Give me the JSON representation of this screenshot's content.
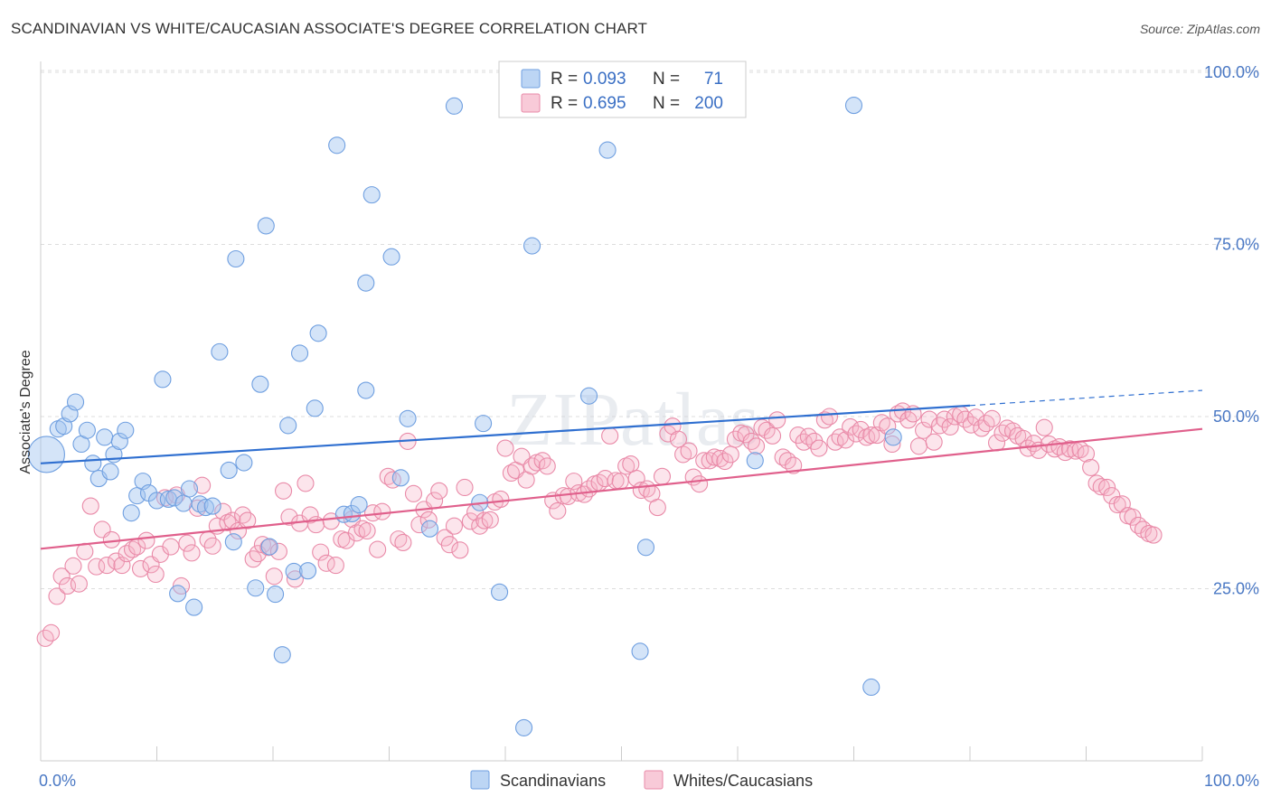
{
  "title": "SCANDINAVIAN VS WHITE/CAUCASIAN ASSOCIATE'S DEGREE CORRELATION CHART",
  "source": "Source: ZipAtlas.com",
  "watermark": "ZIPatlas",
  "colors": {
    "scandinavian": "#6f9fe0",
    "scandinavian_fill": "rgba(160,195,240,0.45)",
    "scandinavian_line": "#2f6fd0",
    "white": "#e98aa8",
    "white_fill": "rgba(245,180,200,0.35)",
    "white_line": "#e0608c",
    "grid": "#dddddd",
    "tick_label": "#4a78c4"
  },
  "legend": {
    "r_label": "R =",
    "n_label": "N =",
    "entries": [
      {
        "r": "0.093",
        "n": "71"
      },
      {
        "r": "0.695",
        "n": "200"
      }
    ]
  },
  "bottom_legend": [
    "Scandinavians",
    "Whites/Caucasians"
  ],
  "chart_data": {
    "type": "scatter",
    "title": "SCANDINAVIAN VS WHITE/CAUCASIAN ASSOCIATE'S DEGREE CORRELATION CHART",
    "xlabel": "",
    "ylabel": "Associate's Degree",
    "xlim": [
      0,
      100
    ],
    "ylim": [
      0,
      100
    ],
    "x_tick_labels": [
      "0.0%",
      "100.0%"
    ],
    "y_ticks": [
      25,
      50,
      75,
      100
    ],
    "y_tick_labels": [
      "25.0%",
      "50.0%",
      "75.0%",
      "100.0%"
    ],
    "grid": true,
    "legend_position": "top-center",
    "series": [
      {
        "name": "Scandinavians",
        "r": 0.093,
        "n": 71,
        "trend": {
          "x0": 0,
          "y0": 43.2,
          "x1": 80,
          "y1": 51.6,
          "dash_to": 100,
          "dash_y": 53.8
        },
        "points": [
          [
            0.5,
            44.5
          ],
          [
            1.5,
            48.2
          ],
          [
            2.0,
            48.6
          ],
          [
            2.5,
            50.4
          ],
          [
            3.0,
            52.1
          ],
          [
            3.5,
            46.0
          ],
          [
            4.0,
            48.0
          ],
          [
            4.5,
            43.2
          ],
          [
            5.0,
            41.0
          ],
          [
            5.5,
            47.0
          ],
          [
            6.0,
            42.0
          ],
          [
            6.3,
            44.5
          ],
          [
            6.8,
            46.4
          ],
          [
            7.3,
            48.0
          ],
          [
            7.8,
            36.0
          ],
          [
            8.3,
            38.5
          ],
          [
            8.8,
            40.6
          ],
          [
            9.3,
            38.9
          ],
          [
            10.0,
            37.8
          ],
          [
            10.5,
            55.4
          ],
          [
            11.0,
            38.0
          ],
          [
            11.5,
            38.2
          ],
          [
            11.8,
            24.3
          ],
          [
            12.3,
            37.4
          ],
          [
            12.8,
            39.5
          ],
          [
            13.2,
            22.3
          ],
          [
            13.7,
            37.3
          ],
          [
            14.2,
            36.8
          ],
          [
            14.8,
            37.0
          ],
          [
            15.4,
            59.4
          ],
          [
            16.2,
            42.2
          ],
          [
            16.6,
            31.8
          ],
          [
            16.8,
            72.9
          ],
          [
            17.5,
            43.3
          ],
          [
            18.5,
            25.1
          ],
          [
            18.9,
            54.7
          ],
          [
            19.4,
            77.7
          ],
          [
            19.7,
            31.1
          ],
          [
            20.2,
            24.2
          ],
          [
            20.8,
            15.4
          ],
          [
            21.3,
            48.7
          ],
          [
            21.8,
            27.5
          ],
          [
            22.3,
            59.2
          ],
          [
            23.0,
            27.6
          ],
          [
            23.6,
            51.2
          ],
          [
            23.9,
            62.1
          ],
          [
            25.5,
            89.4
          ],
          [
            26.1,
            35.8
          ],
          [
            26.8,
            35.9
          ],
          [
            27.4,
            37.2
          ],
          [
            28.0,
            53.8
          ],
          [
            28.0,
            69.4
          ],
          [
            28.5,
            82.2
          ],
          [
            30.2,
            73.2
          ],
          [
            31.0,
            41.1
          ],
          [
            31.6,
            49.7
          ],
          [
            33.5,
            33.7
          ],
          [
            35.6,
            95.1
          ],
          [
            37.8,
            37.5
          ],
          [
            38.1,
            49.0
          ],
          [
            39.5,
            24.5
          ],
          [
            41.6,
            4.8
          ],
          [
            42.3,
            74.8
          ],
          [
            47.2,
            53.0
          ],
          [
            48.8,
            88.7
          ],
          [
            52.1,
            31.0
          ],
          [
            51.6,
            15.9
          ],
          [
            61.5,
            43.6
          ],
          [
            70.0,
            95.2
          ],
          [
            71.5,
            10.7
          ],
          [
            73.4,
            47.0
          ]
        ]
      },
      {
        "name": "Whites/Caucasians",
        "r": 0.695,
        "n": 200,
        "trend": {
          "x0": 0,
          "y0": 30.8,
          "x1": 100,
          "y1": 48.2
        },
        "points": [
          [
            0.4,
            17.8
          ],
          [
            0.9,
            18.6
          ],
          [
            1.4,
            23.9
          ],
          [
            1.8,
            26.8
          ],
          [
            2.3,
            25.4
          ],
          [
            2.8,
            28.3
          ],
          [
            3.3,
            25.7
          ],
          [
            3.8,
            30.4
          ],
          [
            4.3,
            37.0
          ],
          [
            4.8,
            28.2
          ],
          [
            5.3,
            33.6
          ],
          [
            5.7,
            28.4
          ],
          [
            6.1,
            32.1
          ],
          [
            6.5,
            29.0
          ],
          [
            7.0,
            28.4
          ],
          [
            7.4,
            30.1
          ],
          [
            7.9,
            30.7
          ],
          [
            8.3,
            31.1
          ],
          [
            8.6,
            27.9
          ],
          [
            9.1,
            32.0
          ],
          [
            9.5,
            28.5
          ],
          [
            9.9,
            27.1
          ],
          [
            10.3,
            30.0
          ],
          [
            10.7,
            38.2
          ],
          [
            11.2,
            31.1
          ],
          [
            11.7,
            38.6
          ],
          [
            12.1,
            25.4
          ],
          [
            12.6,
            31.6
          ],
          [
            13.0,
            30.2
          ],
          [
            13.5,
            36.7
          ],
          [
            13.9,
            40.0
          ],
          [
            14.4,
            32.1
          ],
          [
            14.8,
            31.2
          ],
          [
            15.2,
            34.1
          ],
          [
            15.7,
            36.2
          ],
          [
            16.1,
            34.6
          ],
          [
            16.5,
            34.9
          ],
          [
            17.0,
            33.4
          ],
          [
            17.4,
            35.7
          ],
          [
            17.8,
            34.9
          ],
          [
            18.3,
            29.3
          ],
          [
            18.7,
            30.1
          ],
          [
            19.1,
            31.4
          ],
          [
            19.6,
            31.0
          ],
          [
            20.1,
            26.8
          ],
          [
            20.5,
            30.4
          ],
          [
            20.9,
            39.2
          ],
          [
            21.4,
            35.4
          ],
          [
            21.9,
            26.4
          ],
          [
            22.3,
            34.5
          ],
          [
            22.8,
            40.3
          ],
          [
            23.2,
            35.7
          ],
          [
            23.7,
            34.3
          ],
          [
            24.1,
            30.3
          ],
          [
            24.6,
            28.7
          ],
          [
            25.0,
            34.8
          ],
          [
            25.4,
            28.4
          ],
          [
            25.9,
            32.2
          ],
          [
            26.3,
            32.0
          ],
          [
            26.8,
            35.1
          ],
          [
            27.2,
            33.1
          ],
          [
            27.7,
            33.7
          ],
          [
            28.1,
            33.4
          ],
          [
            28.6,
            36.0
          ],
          [
            29.0,
            30.7
          ],
          [
            29.4,
            36.2
          ],
          [
            29.9,
            41.3
          ],
          [
            30.3,
            40.8
          ],
          [
            30.8,
            32.2
          ],
          [
            31.2,
            31.7
          ],
          [
            31.6,
            46.4
          ],
          [
            32.1,
            38.8
          ],
          [
            32.6,
            34.3
          ],
          [
            33.0,
            36.5
          ],
          [
            33.4,
            35.0
          ],
          [
            33.9,
            37.8
          ],
          [
            34.3,
            39.2
          ],
          [
            34.8,
            32.4
          ],
          [
            35.2,
            31.4
          ],
          [
            35.6,
            34.1
          ],
          [
            36.1,
            30.6
          ],
          [
            36.5,
            39.7
          ],
          [
            37.0,
            34.8
          ],
          [
            37.4,
            36.1
          ],
          [
            37.8,
            34.1
          ],
          [
            38.2,
            34.9
          ],
          [
            38.7,
            35.0
          ],
          [
            39.1,
            37.6
          ],
          [
            39.6,
            38.0
          ],
          [
            40.0,
            45.4
          ],
          [
            40.5,
            41.8
          ],
          [
            40.9,
            42.2
          ],
          [
            41.4,
            44.2
          ],
          [
            41.8,
            40.8
          ],
          [
            42.3,
            42.8
          ],
          [
            42.7,
            43.3
          ],
          [
            43.2,
            43.6
          ],
          [
            43.6,
            42.8
          ],
          [
            44.1,
            37.8
          ],
          [
            44.5,
            36.3
          ],
          [
            45.0,
            38.5
          ],
          [
            45.4,
            38.4
          ],
          [
            45.9,
            40.6
          ],
          [
            46.3,
            38.9
          ],
          [
            46.8,
            38.7
          ],
          [
            47.2,
            39.5
          ],
          [
            47.7,
            40.2
          ],
          [
            48.1,
            40.4
          ],
          [
            48.6,
            41.0
          ],
          [
            49.0,
            47.2
          ],
          [
            49.5,
            40.7
          ],
          [
            49.9,
            40.6
          ],
          [
            50.4,
            42.8
          ],
          [
            50.8,
            43.1
          ],
          [
            51.3,
            41.0
          ],
          [
            51.7,
            39.3
          ],
          [
            52.2,
            39.5
          ],
          [
            52.6,
            38.8
          ],
          [
            53.1,
            36.8
          ],
          [
            53.5,
            41.3
          ],
          [
            54.0,
            47.5
          ],
          [
            54.4,
            48.6
          ],
          [
            54.9,
            46.7
          ],
          [
            55.3,
            44.5
          ],
          [
            55.8,
            45.0
          ],
          [
            56.2,
            41.2
          ],
          [
            56.7,
            40.2
          ],
          [
            57.1,
            43.6
          ],
          [
            57.6,
            43.6
          ],
          [
            58.0,
            44.1
          ],
          [
            58.5,
            43.9
          ],
          [
            58.9,
            43.5
          ],
          [
            59.4,
            44.5
          ],
          [
            59.8,
            46.7
          ],
          [
            60.3,
            47.6
          ],
          [
            60.7,
            47.4
          ],
          [
            61.2,
            46.4
          ],
          [
            61.6,
            45.7
          ],
          [
            62.1,
            48.4
          ],
          [
            62.5,
            48.0
          ],
          [
            63.0,
            47.2
          ],
          [
            63.4,
            49.5
          ],
          [
            63.9,
            44.1
          ],
          [
            64.3,
            43.6
          ],
          [
            64.8,
            42.9
          ],
          [
            65.2,
            47.3
          ],
          [
            65.7,
            46.3
          ],
          [
            66.1,
            47.1
          ],
          [
            66.6,
            46.4
          ],
          [
            67.0,
            45.4
          ],
          [
            67.5,
            49.5
          ],
          [
            67.9,
            50.0
          ],
          [
            68.4,
            46.3
          ],
          [
            68.8,
            47.0
          ],
          [
            69.3,
            46.6
          ],
          [
            69.7,
            48.5
          ],
          [
            70.2,
            47.5
          ],
          [
            70.6,
            48.1
          ],
          [
            71.1,
            47.0
          ],
          [
            71.5,
            47.3
          ],
          [
            72.0,
            47.3
          ],
          [
            72.4,
            49.1
          ],
          [
            72.9,
            48.6
          ],
          [
            73.3,
            46.0
          ],
          [
            73.8,
            50.4
          ],
          [
            74.2,
            50.8
          ],
          [
            74.7,
            49.5
          ],
          [
            75.1,
            50.4
          ],
          [
            75.6,
            45.7
          ],
          [
            76.0,
            48.0
          ],
          [
            76.5,
            49.6
          ],
          [
            76.9,
            46.3
          ],
          [
            77.4,
            48.7
          ],
          [
            77.8,
            49.6
          ],
          [
            78.3,
            48.5
          ],
          [
            78.7,
            50.0
          ],
          [
            79.2,
            50.3
          ],
          [
            79.6,
            49.6
          ],
          [
            80.1,
            48.8
          ],
          [
            80.5,
            49.9
          ],
          [
            81.0,
            48.3
          ],
          [
            81.4,
            49.0
          ],
          [
            81.9,
            49.7
          ],
          [
            82.3,
            46.2
          ],
          [
            82.8,
            47.6
          ],
          [
            83.2,
            48.3
          ],
          [
            83.7,
            47.9
          ],
          [
            84.1,
            47.2
          ],
          [
            84.6,
            46.8
          ],
          [
            85.0,
            45.4
          ],
          [
            85.5,
            46.1
          ],
          [
            85.9,
            45.1
          ],
          [
            86.4,
            48.4
          ],
          [
            86.8,
            46.0
          ],
          [
            87.3,
            45.3
          ],
          [
            87.7,
            45.6
          ],
          [
            88.2,
            44.8
          ],
          [
            88.6,
            45.3
          ],
          [
            89.1,
            45.0
          ],
          [
            89.5,
            45.2
          ],
          [
            90.0,
            44.6
          ],
          [
            90.4,
            42.6
          ],
          [
            90.9,
            40.3
          ],
          [
            91.3,
            39.8
          ],
          [
            91.8,
            39.7
          ],
          [
            92.2,
            38.5
          ],
          [
            92.7,
            37.2
          ],
          [
            93.1,
            37.3
          ],
          [
            93.6,
            35.6
          ],
          [
            94.0,
            35.4
          ],
          [
            94.5,
            34.2
          ],
          [
            94.9,
            33.6
          ],
          [
            95.4,
            33.0
          ],
          [
            95.8,
            32.8
          ]
        ]
      }
    ]
  }
}
